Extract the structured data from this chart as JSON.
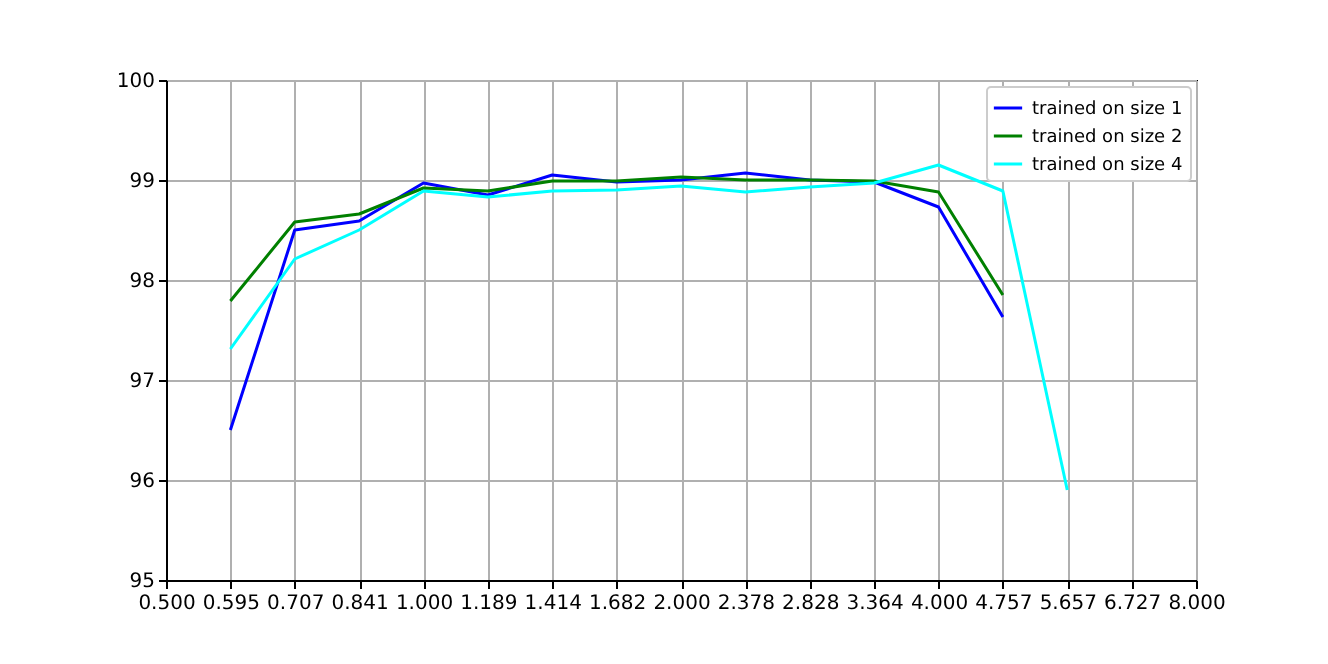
{
  "chart_data": {
    "type": "line",
    "log": "x",
    "x": [
      0.5946,
      0.7071,
      0.8409,
      1,
      1.1892,
      1.4142,
      1.6818,
      2,
      2.3784,
      2.8284,
      3.3636,
      4,
      4.7568,
      5.6569
    ],
    "series": [
      {
        "name": "trained on size 1",
        "color": "#0000ff",
        "values": [
          96.5,
          98.5,
          98.59,
          98.97,
          98.85,
          99.05,
          98.98,
          99.0,
          99.07,
          99.0,
          98.98,
          98.73,
          97.63,
          null
        ]
      },
      {
        "name": "trained on size 2",
        "color": "#008000",
        "values": [
          97.79,
          98.58,
          98.66,
          98.92,
          98.89,
          98.99,
          98.99,
          99.03,
          99.0,
          99.0,
          98.99,
          98.88,
          97.85,
          null
        ]
      },
      {
        "name": "trained on size 4",
        "color": "#00ffff",
        "values": [
          97.31,
          98.21,
          98.5,
          98.89,
          98.83,
          98.89,
          98.9,
          98.94,
          98.88,
          98.93,
          98.97,
          99.15,
          98.89,
          95.9
        ]
      }
    ],
    "xlim": [
      0.5,
      8
    ],
    "xticks": [
      {
        "value": 0.5,
        "label": "0.500"
      },
      {
        "value": 0.5946,
        "label": "0.595"
      },
      {
        "value": 0.7071,
        "label": "0.707"
      },
      {
        "value": 0.8409,
        "label": "0.841"
      },
      {
        "value": 1,
        "label": "1.000"
      },
      {
        "value": 1.1892,
        "label": "1.189"
      },
      {
        "value": 1.4142,
        "label": "1.414"
      },
      {
        "value": 1.6818,
        "label": "1.682"
      },
      {
        "value": 2,
        "label": "2.000"
      },
      {
        "value": 2.3784,
        "label": "2.378"
      },
      {
        "value": 2.8284,
        "label": "2.828"
      },
      {
        "value": 3.3636,
        "label": "3.364"
      },
      {
        "value": 4,
        "label": "4.000"
      },
      {
        "value": 4.7568,
        "label": "4.757"
      },
      {
        "value": 5.6569,
        "label": "5.657"
      },
      {
        "value": 6.7272,
        "label": "6.727"
      },
      {
        "value": 8,
        "label": "8.000"
      }
    ],
    "ylim": [
      95,
      100
    ],
    "yticks": [
      95,
      96,
      97,
      98,
      99,
      100
    ],
    "grid": true,
    "legend": "top right",
    "marker": "none",
    "line_style": "solid"
  }
}
